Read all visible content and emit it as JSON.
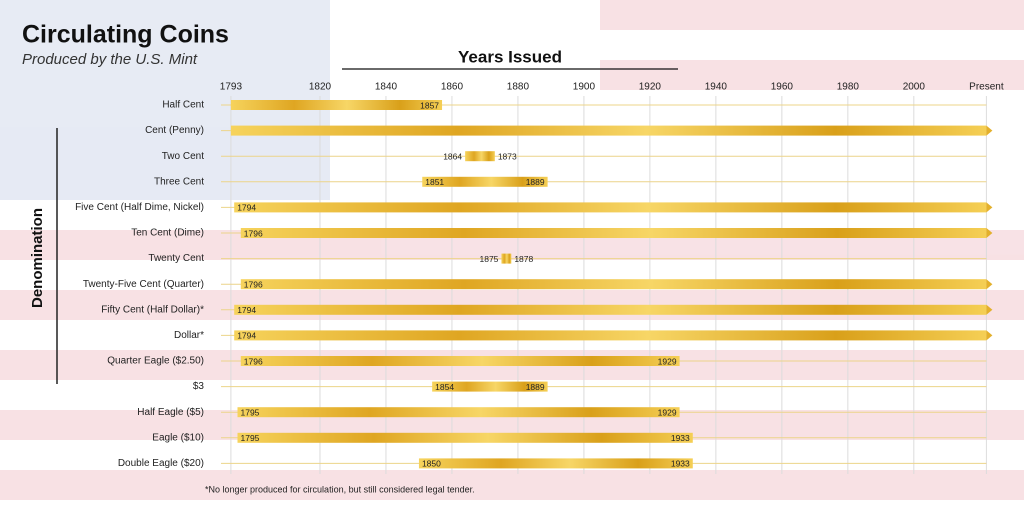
{
  "chart_data": {
    "type": "timeline",
    "title": "Circulating Coins",
    "subtitle": "Produced by the U.S. Mint",
    "x_label": "Years Issued",
    "y_label": "Denomination",
    "footnote": "*No longer produced for circulation, but still considered legal tender.",
    "categories": [
      "Half Cent",
      "Cent (Penny)",
      "Two Cent",
      "Three Cent",
      "Five Cent (Half Dime, Nickel)",
      "Ten Cent (Dime)",
      "Twenty Cent",
      "Twenty-Five Cent (Quarter)",
      "Fifty Cent (Half Dollar)*",
      "Dollar*",
      "Quarter Eagle ($2.50)",
      "$3",
      "Half Eagle ($5)",
      "Eagle ($10)",
      "Double Eagle ($20)"
    ],
    "start": [
      1793,
      1793,
      1864,
      1851,
      1794,
      1796,
      1875,
      1796,
      1794,
      1794,
      1796,
      1854,
      1795,
      1795,
      1850
    ],
    "end": [
      1857,
      2022,
      1873,
      1889,
      2022,
      2022,
      1878,
      2022,
      2022,
      2022,
      1929,
      1889,
      1929,
      1933,
      1933
    ],
    "start_labels": [
      null,
      null,
      "1864",
      "1851",
      "1794",
      "1796",
      "1875",
      "1796",
      "1794",
      "1794",
      "1796",
      "1854",
      "1795",
      "1795",
      "1850"
    ],
    "end_labels": [
      "1857",
      null,
      "1873",
      "1889",
      null,
      null,
      "1878",
      null,
      null,
      null,
      "1929",
      "1889",
      "1929",
      "1933",
      "1933"
    ],
    "color": "#e3b02c",
    "xlim": [
      1790,
      2024
    ],
    "xticks": [
      1793,
      1820,
      1840,
      1860,
      1880,
      1900,
      1920,
      1940,
      1960,
      1980,
      2000,
      {
        "value": 2022,
        "label": "Present"
      }
    ],
    "grid": true
  }
}
